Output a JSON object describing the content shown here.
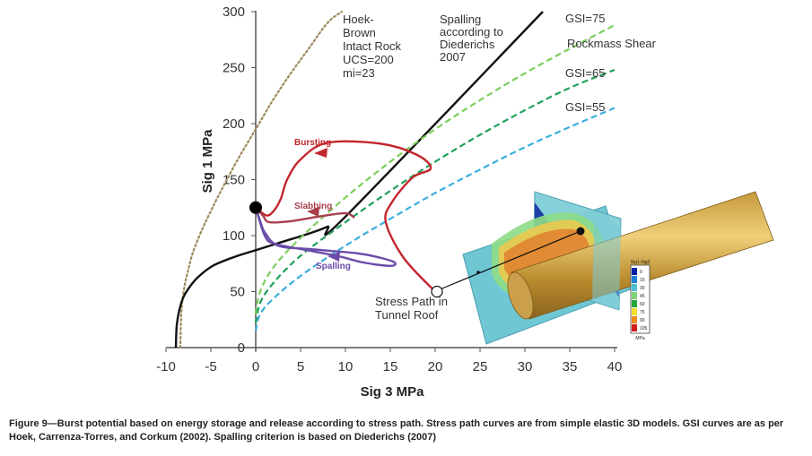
{
  "chart_data": {
    "type": "line",
    "xlabel": "Sig 3  MPa",
    "ylabel": "Sig 1 MPa",
    "xlim": [
      -10,
      40
    ],
    "ylim": [
      0,
      300
    ],
    "xticks": [
      -10,
      -5,
      0,
      5,
      10,
      15,
      20,
      25,
      30,
      35,
      40
    ],
    "yticks": [
      0,
      50,
      100,
      150,
      200,
      250,
      300
    ],
    "grid": false,
    "series": [
      {
        "key": "hoek_brown",
        "style": "dotted",
        "color": "#9c8a5a",
        "x": [
          -8.4,
          -8.3,
          -8,
          -7.5,
          -7,
          -6,
          -5,
          -4,
          -2,
          0,
          2,
          4,
          6,
          8,
          9.6
        ],
        "y": [
          0,
          30,
          52,
          70,
          85,
          105,
          122,
          138,
          168,
          195,
          222,
          246,
          268,
          290,
          300
        ]
      },
      {
        "key": "spalling",
        "style": "solid",
        "color": "#111111",
        "x": [
          -8.9,
          -8.8,
          -8.5,
          -8,
          -7,
          -6,
          -5,
          -4,
          -2,
          0,
          2,
          4,
          6,
          8,
          10,
          32
        ],
        "y": [
          0,
          20,
          34,
          46,
          58,
          66,
          72,
          76,
          82,
          87,
          92,
          97,
          102,
          108,
          117,
          300
        ]
      },
      {
        "key": "gsi75",
        "style": "dashed",
        "color": "#7ccf5c",
        "x": [
          0,
          0.5,
          2,
          5,
          10,
          15,
          20,
          25,
          30,
          35,
          40
        ],
        "y": [
          30,
          50,
          72,
          98,
          134,
          166,
          195,
          221,
          245,
          267,
          288
        ]
      },
      {
        "key": "gsi65",
        "style": "dashed",
        "color": "#21a05c",
        "x": [
          0,
          0.5,
          2,
          5,
          10,
          15,
          20,
          25,
          30,
          35,
          40
        ],
        "y": [
          22,
          40,
          58,
          82,
          112,
          140,
          166,
          190,
          212,
          232,
          248
        ]
      },
      {
        "key": "gsi55",
        "style": "dashed",
        "color": "#3aaedd",
        "x": [
          0,
          0.5,
          2,
          5,
          10,
          15,
          20,
          25,
          30,
          35,
          40
        ],
        "y": [
          15,
          30,
          44,
          64,
          91,
          115,
          138,
          159,
          179,
          197,
          214
        ]
      },
      {
        "key": "bursting",
        "style": "solid",
        "color": "#c2262c",
        "x": [
          20,
          16.5,
          14.5,
          15.2,
          17.5,
          19.5,
          18,
          14,
          8,
          5,
          3.5,
          2.8,
          2,
          1.2,
          0
        ],
        "y": [
          50,
          80,
          112,
          130,
          152,
          160,
          172,
          182,
          183,
          168,
          150,
          133,
          122,
          118,
          125
        ]
      },
      {
        "key": "slabbing",
        "style": "solid",
        "color": "#a83e4c",
        "x": [
          0,
          0.8,
          1.5,
          4,
          7,
          10,
          11
        ],
        "y": [
          125,
          118,
          112,
          113,
          117,
          120,
          116
        ]
      },
      {
        "key": "spalling_path",
        "style": "solid",
        "color": "#6b4caa",
        "x": [
          0,
          0.5,
          1,
          2.5,
          6,
          11.5,
          14,
          15.5,
          15,
          12,
          9,
          5,
          2,
          1,
          0
        ],
        "y": [
          125,
          113,
          103,
          91,
          88,
          84,
          80,
          76,
          73,
          76,
          82,
          88,
          93,
          100,
          125
        ]
      }
    ],
    "points": [
      {
        "key": "start",
        "x": 0,
        "y": 125,
        "fill": "#000000"
      },
      {
        "key": "end",
        "x": 20.2,
        "y": 50,
        "fill": "#ffffff"
      }
    ],
    "labels": [
      {
        "key": "hoek_brown",
        "lines": [
          "Hoek-",
          "Brown",
          "Intact Rock",
          "UCS=200",
          "mi=23"
        ]
      },
      {
        "key": "spalling",
        "lines": [
          "Spalling",
          "according to",
          "Diederichs",
          "2007"
        ]
      },
      {
        "key": "gsi75",
        "lines": [
          "GSI=75"
        ]
      },
      {
        "key": "shear",
        "lines": [
          "Rockmass Shear"
        ]
      },
      {
        "key": "gsi65",
        "lines": [
          "GSI=65"
        ]
      },
      {
        "key": "gsi55",
        "lines": [
          "GSI=55"
        ]
      },
      {
        "key": "bursting",
        "lines": [
          "Bursting"
        ]
      },
      {
        "key": "slabbing",
        "lines": [
          "Slabbing"
        ]
      },
      {
        "key": "spalling_path",
        "lines": [
          "Spalling"
        ]
      },
      {
        "key": "stress_path",
        "lines": [
          "Stress Path in",
          "Tunnel Roof"
        ]
      }
    ],
    "inset_legend": {
      "title": "Sig1-Sig3",
      "values": [
        "0",
        "15",
        "30",
        "45",
        "60",
        "75",
        "90",
        "105"
      ],
      "colors": [
        "#0a1fa8",
        "#1f7fd6",
        "#4ec0cf",
        "#7fd47a",
        "#22a83a",
        "#f2e02a",
        "#f08a1e",
        "#d21c1c"
      ],
      "unit": "MPa"
    }
  },
  "caption": "Figure 9—Burst potential based on energy storage and release according to stress path. Stress path curves are from simple elastic 3D models. GSI curves are as per Hoek, Carrenza-Torres, and Corkum (2002). Spalling criterion is based on Diederichs (2007)"
}
